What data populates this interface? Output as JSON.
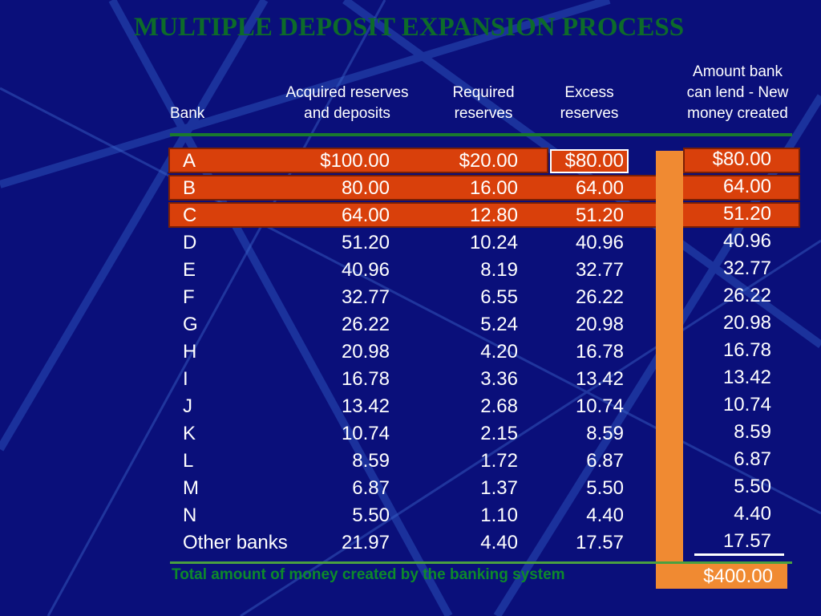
{
  "title": "MULTIPLE DEPOSIT EXPANSION PROCESS",
  "headers": {
    "bank": "Bank",
    "acquired": [
      "Acquired reserves",
      "and deposits"
    ],
    "required": [
      "Required",
      "reserves"
    ],
    "excess": [
      "Excess",
      "reserves"
    ],
    "lend": [
      "Amount bank",
      "can lend - New",
      "money created"
    ]
  },
  "rows": [
    {
      "bank": "A",
      "acquired": "$100.00",
      "required": "$20.00",
      "excess": "$80.00",
      "lend": "$80.00"
    },
    {
      "bank": "B",
      "acquired": "80.00",
      "required": "16.00",
      "excess": "64.00",
      "lend": "64.00"
    },
    {
      "bank": "C",
      "acquired": "64.00",
      "required": "12.80",
      "excess": "51.20",
      "lend": "51.20"
    },
    {
      "bank": "D",
      "acquired": "51.20",
      "required": "10.24",
      "excess": "40.96",
      "lend": "40.96"
    },
    {
      "bank": "E",
      "acquired": "40.96",
      "required": "8.19",
      "excess": "32.77",
      "lend": "32.77"
    },
    {
      "bank": "F",
      "acquired": "32.77",
      "required": "6.55",
      "excess": "26.22",
      "lend": "26.22"
    },
    {
      "bank": "G",
      "acquired": "26.22",
      "required": "5.24",
      "excess": "20.98",
      "lend": "20.98"
    },
    {
      "bank": "H",
      "acquired": "20.98",
      "required": "4.20",
      "excess": "16.78",
      "lend": "16.78"
    },
    {
      "bank": "I",
      "acquired": "16.78",
      "required": "3.36",
      "excess": "13.42",
      "lend": "13.42"
    },
    {
      "bank": "J",
      "acquired": "13.42",
      "required": "2.68",
      "excess": "10.74",
      "lend": "10.74"
    },
    {
      "bank": "K",
      "acquired": "10.74",
      "required": "2.15",
      "excess": "8.59",
      "lend": "8.59"
    },
    {
      "bank": "L",
      "acquired": "8.59",
      "required": "1.72",
      "excess": "6.87",
      "lend": "6.87"
    },
    {
      "bank": "M",
      "acquired": "6.87",
      "required": "1.37",
      "excess": "5.50",
      "lend": "5.50"
    },
    {
      "bank": "N",
      "acquired": "5.50",
      "required": "1.10",
      "excess": "4.40",
      "lend": "4.40"
    },
    {
      "bank": "Other banks",
      "acquired": "21.97",
      "required": "4.40",
      "excess": "17.57",
      "lend": "17.57"
    }
  ],
  "total_label": "Total amount of money created by the banking system",
  "total_value": "$400.00",
  "colors": {
    "background": "#0a0f7a",
    "title": "#0d6b2a",
    "band": "#d9400b",
    "bar": "#f08a32"
  }
}
